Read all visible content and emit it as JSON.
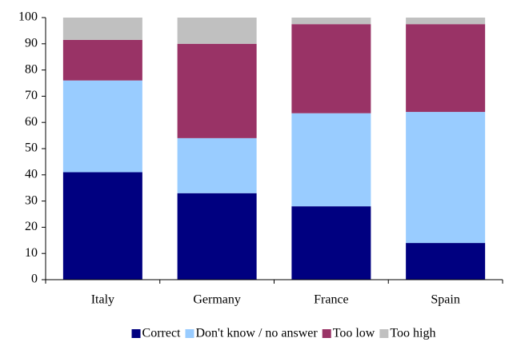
{
  "chart_data": {
    "type": "stacked_bar",
    "categories": [
      "Italy",
      "Germany",
      "France",
      "Spain"
    ],
    "series": [
      {
        "name": "Correct",
        "color": "#000080",
        "values": [
          41,
          33,
          28,
          14
        ]
      },
      {
        "name": "Don't know / no answer",
        "color": "#99ccff",
        "values": [
          35,
          21,
          35.5,
          50
        ]
      },
      {
        "name": "Too low",
        "color": "#993366",
        "values": [
          15.5,
          36,
          34,
          33.5
        ]
      },
      {
        "name": "Too high",
        "color": "#c0c0c0",
        "values": [
          8.5,
          10,
          2.5,
          2.5
        ]
      }
    ],
    "ylim": [
      0,
      100
    ],
    "yticks": [
      0,
      10,
      20,
      30,
      40,
      50,
      60,
      70,
      80,
      90,
      100
    ],
    "legend": "bottom"
  }
}
